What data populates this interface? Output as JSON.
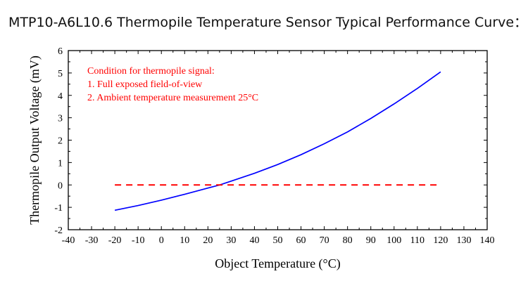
{
  "page": {
    "title": "MTP10-A6L10.6 Thermopile Temperature Sensor Typical Performance Curve："
  },
  "chart_data": {
    "type": "line",
    "xlabel": "Object Temperature (°C)",
    "ylabel": "Thermopile Output Voltage (mV)",
    "xlim": [
      -40,
      140
    ],
    "ylim": [
      -2,
      6
    ],
    "xticks": [
      -40,
      -30,
      -20,
      -10,
      0,
      10,
      20,
      30,
      40,
      50,
      60,
      70,
      80,
      90,
      100,
      110,
      120,
      130,
      140
    ],
    "yticks": [
      -2,
      -1,
      0,
      1,
      2,
      3,
      4,
      5,
      6
    ],
    "grid": false,
    "annotations": [
      "Condition for thermopile signal:",
      "1. Full exposed field-of-view",
      "2. Ambient temperature measurement 25°C"
    ],
    "series": [
      {
        "style": "solid",
        "color": "#0000ff",
        "x": [
          -20,
          -10,
          0,
          10,
          20,
          25,
          30,
          40,
          50,
          60,
          70,
          80,
          90,
          100,
          110,
          120
        ],
        "y": [
          -1.13,
          -0.92,
          -0.68,
          -0.42,
          -0.14,
          0.0,
          0.17,
          0.52,
          0.91,
          1.35,
          1.84,
          2.37,
          2.97,
          3.62,
          4.31,
          5.05
        ]
      },
      {
        "style": "dashed",
        "color": "#ff0000",
        "x": [
          -20,
          120
        ],
        "y": [
          0,
          0
        ]
      }
    ]
  }
}
